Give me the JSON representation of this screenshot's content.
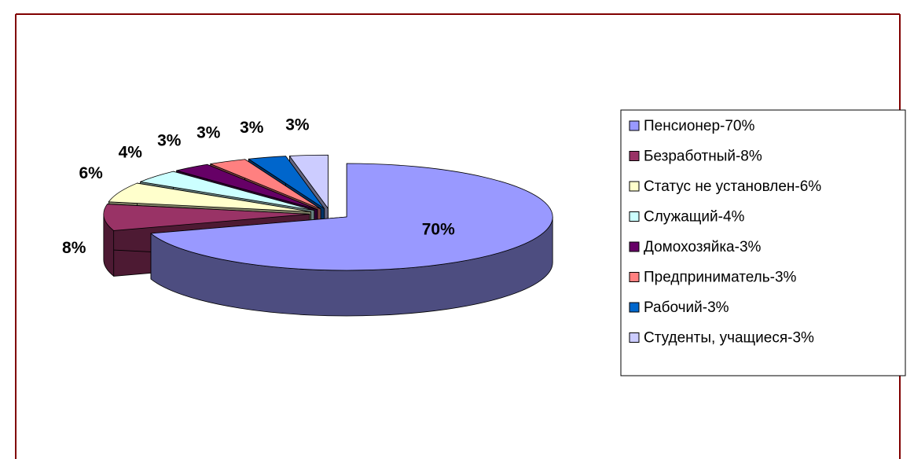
{
  "chart_data": {
    "type": "pie3d",
    "categories": [
      "Пенсионер-70%",
      "Безработный-8%",
      "Статус не установлен-6%",
      "Служащий-4%",
      "Домохозяйка-3%",
      "Предприниматель-3%",
      "Рабочий-3%",
      "Студенты, учащиеся-3%"
    ],
    "values": [
      70,
      8,
      6,
      4,
      3,
      3,
      3,
      3
    ],
    "value_labels": [
      "70%",
      "8%",
      "6%",
      "4%",
      "3%",
      "3%",
      "3%",
      "3%"
    ],
    "colors": [
      "#9999ff",
      "#993366",
      "#ffffcc",
      "#ccffff",
      "#660066",
      "#ff8080",
      "#0066cc",
      "#ccccff"
    ],
    "legend": "right"
  }
}
